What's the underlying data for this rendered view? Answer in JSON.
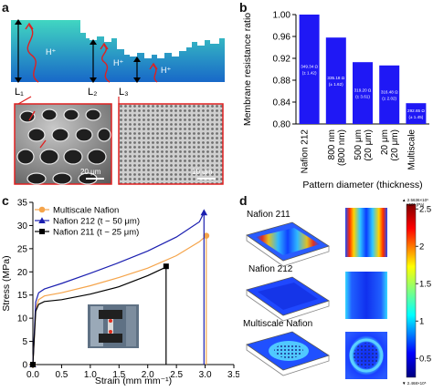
{
  "panel_labels": {
    "a": "a",
    "b": "b",
    "c": "c",
    "d": "d"
  },
  "panel_a": {
    "h_labels": [
      "H⁺",
      "H⁺",
      "H⁺"
    ],
    "L_labels": [
      "L₁",
      "L₂",
      "L₃"
    ],
    "scalebar_1": "20 μm",
    "scalebar_2": "10 μm"
  },
  "colors": {
    "bar": "#1f18f5",
    "membrane_top": "#3fd0c0",
    "membrane_bottom": "#1a72cc",
    "orange": "#f5a44a",
    "navy": "#1b1fb0",
    "black": "#000000"
  },
  "chart_data": [
    {
      "type": "bar",
      "ylabel": "Membrane resistance ratio",
      "xlabel": "Pattern diameter (thickness)",
      "ylim": [
        0.8,
        1.0
      ],
      "yticks": [
        0.8,
        0.84,
        0.88,
        0.92,
        0.96,
        1.0
      ],
      "ytick_labels": [
        "0.80",
        "0.84",
        "0.88",
        "0.92",
        "0.96",
        "1.00"
      ],
      "categories": [
        "Nafion 212",
        "800 nm\n(800 nm)",
        "500 μm\n(20 μm)",
        "20 μm\n(20 μm)",
        "Multiscale"
      ],
      "values": [
        1.0,
        0.958,
        0.913,
        0.907,
        0.838
      ],
      "bar_labels": [
        "349.34 Ω\n(± 1.42)",
        "335.18 Ω\n(± 1.62)",
        "319.20 Ω\n(± 3.61)",
        "316.48 Ω\n(± 2.02)",
        "292.65 Ω\n(± 1.45)"
      ]
    },
    {
      "type": "line",
      "xlabel": "Strain (mm mm⁻¹)",
      "ylabel": "Stress (MPa)",
      "xlim": [
        0,
        3.5
      ],
      "ylim": [
        0,
        35
      ],
      "xticks": [
        0,
        0.5,
        1.0,
        1.5,
        2.0,
        2.5,
        3.0,
        3.5
      ],
      "xtick_labels": [
        "0.0",
        "0.5",
        "1.0",
        "1.5",
        "2.0",
        "2.5",
        "3.0",
        "3.5"
      ],
      "yticks": [
        0,
        5,
        10,
        15,
        20,
        25,
        30,
        35
      ],
      "ytick_labels": [
        "0",
        "5",
        "10",
        "15",
        "20",
        "25",
        "30",
        "35"
      ],
      "legend_position": "top-left",
      "series": [
        {
          "name": "Multiscale Nafion",
          "color": "#f5a44a",
          "marker": "circle",
          "x": [
            0,
            0.05,
            0.1,
            0.2,
            0.5,
            1.0,
            1.5,
            2.0,
            2.5,
            2.9,
            3.02,
            3.02
          ],
          "y": [
            0,
            12,
            14,
            14.8,
            15.5,
            17,
            18.8,
            20.8,
            23.5,
            26.5,
            27.8,
            0
          ]
        },
        {
          "name": "Nafion 212 (t ~ 50 μm)",
          "color": "#1b1fb0",
          "marker": "triangle",
          "x": [
            0,
            0.05,
            0.1,
            0.2,
            0.5,
            1.0,
            1.5,
            2.0,
            2.5,
            2.9,
            2.98,
            2.98
          ],
          "y": [
            0,
            13.5,
            15.5,
            16.3,
            17.5,
            19.7,
            22,
            24.5,
            27.5,
            30.8,
            32.8,
            0
          ]
        },
        {
          "name": "Nafion 211 (t ~ 25 μm)",
          "color": "#000000",
          "marker": "square",
          "x": [
            0,
            0.05,
            0.1,
            0.2,
            0.5,
            1.0,
            1.5,
            2.0,
            2.28,
            2.32,
            2.32
          ],
          "y": [
            0,
            11.5,
            13,
            13.6,
            14,
            15.2,
            16.8,
            19.2,
            20.8,
            21.2,
            0
          ]
        }
      ]
    },
    {
      "type": "heatmap",
      "samples": [
        "Nafion 211",
        "Nafion 212",
        "Multiscale Nafion"
      ],
      "colorbar_ticks": [
        0.5,
        1,
        1.5,
        2,
        2.5
      ],
      "colorbar_tick_labels": [
        "0.5",
        "1",
        "1.5",
        "2",
        "2.5"
      ],
      "colorbar_max_label": "▲ 2.5636×10⁶",
      "colorbar_max_unit": "×10⁶ (Pa)",
      "colorbar_min_label": "▼ 2.468×10⁵"
    }
  ]
}
